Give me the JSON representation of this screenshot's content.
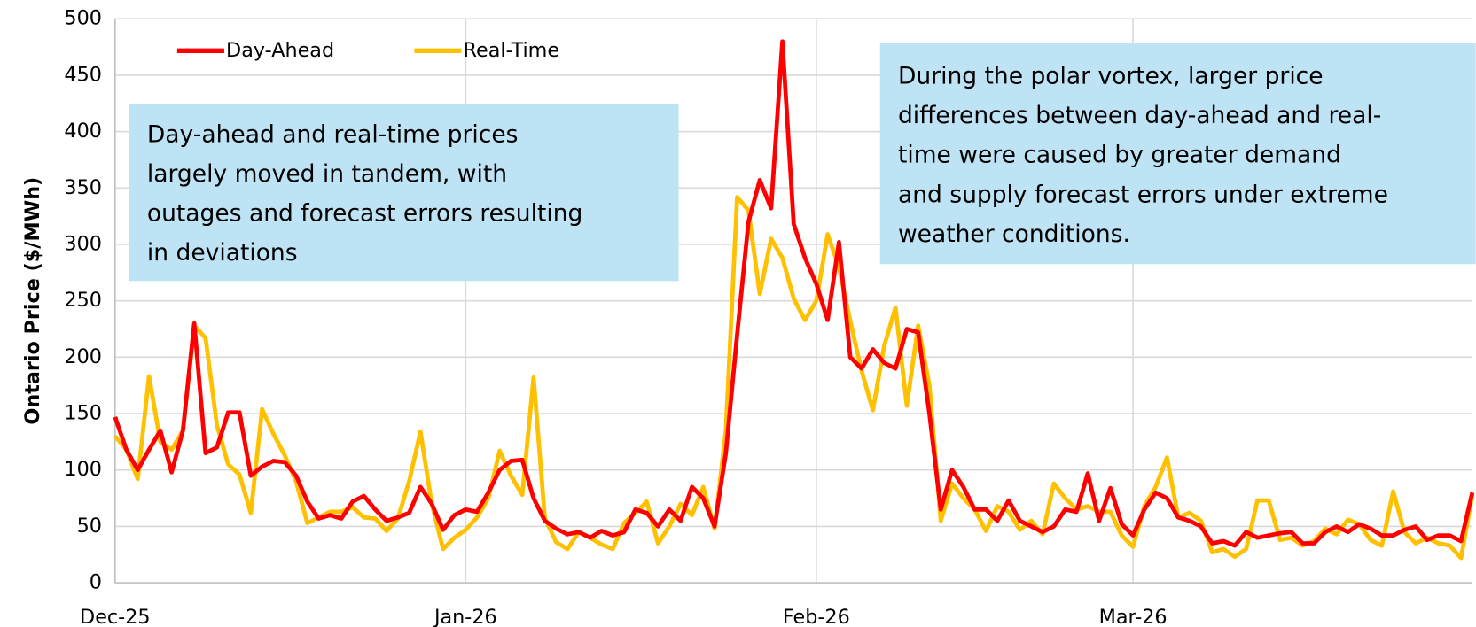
{
  "chart_data": {
    "type": "line",
    "ylabel": "Ontario Price ($/MWh)",
    "categories": [
      "Dec-25",
      null,
      null,
      null,
      null,
      null,
      null,
      null,
      null,
      null,
      null,
      null,
      null,
      null,
      null,
      null,
      null,
      null,
      null,
      null,
      null,
      null,
      null,
      null,
      null,
      null,
      null,
      null,
      null,
      null,
      null,
      "Jan-26",
      null,
      null,
      null,
      null,
      null,
      null,
      null,
      null,
      null,
      null,
      null,
      null,
      null,
      null,
      null,
      null,
      null,
      null,
      null,
      null,
      null,
      null,
      null,
      null,
      null,
      null,
      null,
      null,
      null,
      null,
      "Feb-26",
      null,
      null,
      null,
      null,
      null,
      null,
      null,
      null,
      null,
      null,
      null,
      null,
      null,
      null,
      null,
      null,
      null,
      null,
      null,
      null,
      null,
      null,
      null,
      null,
      null,
      null,
      null,
      "Mar-26",
      null,
      null,
      null,
      null,
      null,
      null,
      null,
      null,
      null,
      null,
      null,
      null,
      null,
      null,
      null,
      null,
      null,
      null,
      null,
      null,
      null,
      null,
      null,
      null,
      null,
      null,
      null,
      null,
      null,
      null
    ],
    "series": [
      {
        "name": "Day-Ahead",
        "color": "#ff0000",
        "values": [
          147,
          118,
          100,
          118,
          135,
          98,
          135,
          230,
          115,
          120,
          151,
          151,
          95,
          103,
          108,
          107,
          95,
          72,
          57,
          60,
          57,
          72,
          77,
          65,
          55,
          58,
          62,
          85,
          70,
          47,
          60,
          65,
          63,
          80,
          100,
          108,
          109,
          75,
          55,
          48,
          43,
          45,
          40,
          46,
          42,
          45,
          65,
          62,
          50,
          65,
          55,
          85,
          75,
          50,
          115,
          220,
          320,
          357,
          332,
          480,
          318,
          288,
          265,
          233,
          302,
          200,
          190,
          207,
          195,
          190,
          225,
          222,
          150,
          65,
          100,
          85,
          65,
          65,
          55,
          73,
          55,
          50,
          45,
          50,
          65,
          63,
          97,
          55,
          84,
          52,
          42,
          65,
          80,
          75,
          58,
          55,
          50,
          35,
          37,
          33,
          45,
          40,
          42,
          44,
          45,
          35,
          35,
          45,
          50,
          45,
          52,
          48,
          42,
          42,
          47,
          50,
          38,
          42,
          42,
          37,
          80
        ]
      },
      {
        "name": "Real-Time",
        "color": "#ffc000",
        "values": [
          130,
          118,
          92,
          183,
          125,
          118,
          135,
          228,
          217,
          140,
          105,
          96,
          62,
          154,
          132,
          113,
          90,
          53,
          58,
          63,
          63,
          67,
          58,
          57,
          46,
          57,
          90,
          134,
          70,
          30,
          40,
          47,
          58,
          75,
          117,
          95,
          78,
          182,
          57,
          36,
          30,
          45,
          40,
          34,
          30,
          53,
          62,
          72,
          35,
          50,
          70,
          60,
          85,
          48,
          135,
          342,
          330,
          256,
          305,
          288,
          252,
          233,
          250,
          309,
          280,
          232,
          188,
          153,
          210,
          244,
          157,
          228,
          175,
          55,
          88,
          75,
          65,
          46,
          68,
          63,
          47,
          55,
          43,
          88,
          75,
          65,
          68,
          63,
          63,
          42,
          32,
          68,
          85,
          111,
          58,
          62,
          55,
          27,
          30,
          23,
          30,
          73,
          73,
          38,
          40,
          33,
          37,
          48,
          43,
          56,
          52,
          38,
          33,
          81,
          45,
          35,
          40,
          35,
          33,
          22,
          78
        ]
      }
    ],
    "ylim": [
      0,
      500
    ],
    "yticks": [
      0,
      50,
      100,
      150,
      200,
      250,
      300,
      350,
      400,
      450,
      500
    ],
    "grid": true,
    "legend": "upper left",
    "annotations": [
      {
        "lines": [
          "Day-ahead and real-time prices",
          "largely moved in tandem, with",
          "outages and forecast errors resulting",
          "in deviations"
        ]
      },
      {
        "lines": [
          "During the polar vortex, larger price",
          "differences between day-ahead and real-",
          "time were caused by greater demand",
          "and supply forecast errors under extreme",
          "weather conditions."
        ]
      }
    ]
  }
}
